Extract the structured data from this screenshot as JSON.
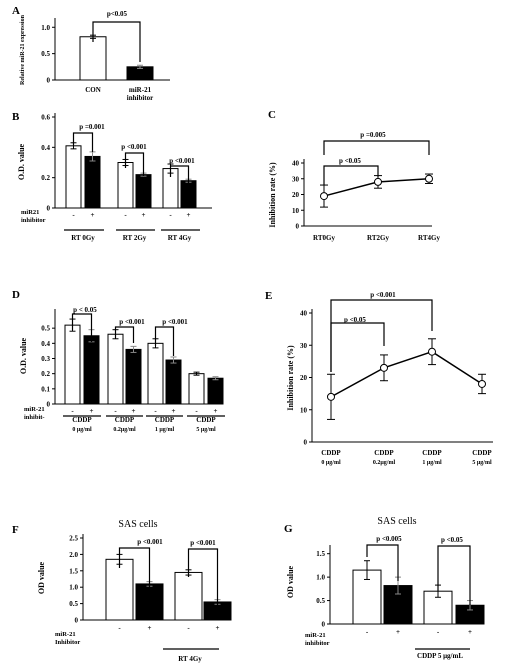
{
  "panels": [
    {
      "id": "A",
      "letter": "A",
      "type": "bar",
      "ylabel": "Relative miR-21 expression",
      "yticks": [
        "0",
        "0.5",
        "1.0"
      ],
      "ylim": [
        0,
        1.1
      ],
      "groups": [
        {
          "label": "",
          "bars": [
            {
              "label": "CON",
              "value": 0.82,
              "err": 0.03,
              "fill": "white"
            },
            {
              "label": "miR-21 inhibitor",
              "value": 0.25,
              "err": 0.03,
              "fill": "black"
            }
          ]
        }
      ],
      "sig": [
        {
          "label": "p<0.05"
        }
      ]
    },
    {
      "id": "B",
      "letter": "B",
      "type": "bar",
      "ylabel": "O.D. value",
      "yticks": [
        "0",
        "0.2",
        "0.4",
        "0.6"
      ],
      "ylim": [
        0,
        0.6
      ],
      "inhibitor_label": [
        "miR21",
        "inhibitor"
      ],
      "signs": [
        "-",
        "+"
      ],
      "groups": [
        {
          "label": "RT 0Gy",
          "bars": [
            {
              "value": 0.41,
              "err": 0.02,
              "fill": "white"
            },
            {
              "value": 0.34,
              "err": 0.03,
              "fill": "black"
            }
          ]
        },
        {
          "label": "RT 2Gy",
          "bars": [
            {
              "value": 0.3,
              "err": 0.02,
              "fill": "white"
            },
            {
              "value": 0.22,
              "err": 0.01,
              "fill": "black"
            }
          ]
        },
        {
          "label": "RT 4Gy",
          "bars": [
            {
              "value": 0.26,
              "err": 0.03,
              "fill": "white"
            },
            {
              "value": 0.18,
              "err": 0.01,
              "fill": "black"
            }
          ]
        }
      ],
      "sig": [
        {
          "label": "p =0.001"
        },
        {
          "label": "p <0.001"
        },
        {
          "label": "p <0.001"
        }
      ]
    },
    {
      "id": "C",
      "letter": "C",
      "type": "line",
      "ylabel": "Inhibition rate (%)",
      "yticks": [
        "0",
        "10",
        "20",
        "30",
        "40"
      ],
      "ylim": [
        0,
        40
      ],
      "categories": [
        "RT0Gy",
        "RT2Gy",
        "RT4Gy"
      ],
      "values": [
        19,
        28,
        30
      ],
      "errs": [
        7,
        4,
        3
      ],
      "sig": [
        {
          "label": "p =0.005"
        },
        {
          "label": "p <0.05"
        }
      ]
    },
    {
      "id": "D",
      "letter": "D",
      "type": "bar",
      "ylabel": "O.D. value",
      "yticks": [
        "0",
        "0.1",
        "0.2",
        "0.3",
        "0.4",
        "0.5"
      ],
      "ylim": [
        0,
        0.6
      ],
      "inhibitor_label": [
        "miR-21",
        "inhibit-"
      ],
      "signs": [
        "-",
        "+"
      ],
      "groups": [
        {
          "label": "CDDP",
          "sublabel": "0 μg/ml",
          "bars": [
            {
              "value": 0.52,
              "err": 0.04,
              "fill": "white"
            },
            {
              "value": 0.45,
              "err": 0.04,
              "fill": "black"
            }
          ]
        },
        {
          "label": "CDDP",
          "sublabel": "0.2μg/ml",
          "bars": [
            {
              "value": 0.46,
              "err": 0.03,
              "fill": "white"
            },
            {
              "value": 0.36,
              "err": 0.02,
              "fill": "black"
            }
          ]
        },
        {
          "label": "CDDP",
          "sublabel": "1 μg/ml",
          "bars": [
            {
              "value": 0.4,
              "err": 0.03,
              "fill": "white"
            },
            {
              "value": 0.29,
              "err": 0.02,
              "fill": "black"
            }
          ]
        },
        {
          "label": "CDDP",
          "sublabel": "5 μg/ml",
          "bars": [
            {
              "value": 0.2,
              "err": 0.01,
              "fill": "white"
            },
            {
              "value": 0.17,
              "err": 0.01,
              "fill": "black"
            }
          ]
        }
      ],
      "sig": [
        {
          "label": "p < 0.05"
        },
        {
          "label": "p <0.001"
        },
        {
          "label": "p <0.001"
        }
      ]
    },
    {
      "id": "E",
      "letter": "E",
      "type": "line",
      "ylabel": "Inhibition rate (%)",
      "yticks": [
        "0",
        "10",
        "20",
        "30",
        "40"
      ],
      "ylim": [
        0,
        40
      ],
      "categories": [
        [
          "CDDP",
          "0 μg/ml"
        ],
        [
          "CDDP",
          "0.2μg/ml"
        ],
        [
          "CDDP",
          "1 μg/ml"
        ],
        [
          "CDDP",
          "5 μg/ml"
        ]
      ],
      "values": [
        14,
        23,
        28,
        18
      ],
      "errs": [
        7,
        4,
        4,
        3
      ],
      "sig": [
        {
          "label": "p <0.001"
        },
        {
          "label": "p <0.05"
        }
      ]
    },
    {
      "id": "F",
      "letter": "F",
      "type": "bar",
      "title": "SAS   cells",
      "ylabel": "OD value",
      "yticks": [
        "0",
        "0.5",
        "1.0",
        "1.5",
        "2.0",
        "2.5"
      ],
      "ylim": [
        0,
        2.5
      ],
      "inhibitor_label": [
        "miR-21",
        "Inhibitor"
      ],
      "signs": [
        "-",
        "+",
        "-",
        "+"
      ],
      "groups": [
        {
          "label": "",
          "bars": [
            {
              "value": 1.85,
              "err": 0.15,
              "fill": "white"
            },
            {
              "value": 1.1,
              "err": 0.07,
              "fill": "black"
            }
          ]
        },
        {
          "label": "RT 4Gy",
          "bars": [
            {
              "value": 1.45,
              "err": 0.08,
              "fill": "white"
            },
            {
              "value": 0.55,
              "err": 0.07,
              "fill": "black"
            }
          ]
        }
      ],
      "sig": [
        {
          "label": "p <0.001"
        },
        {
          "label": "p <0.001"
        }
      ]
    },
    {
      "id": "G",
      "letter": "G",
      "type": "bar",
      "title": "SAS   cells",
      "ylabel": "OD value",
      "yticks": [
        "0",
        "0.5",
        "1.0",
        "1.5"
      ],
      "ylim": [
        0,
        1.6
      ],
      "inhibitor_label": [
        "miR-21",
        "inhibitor"
      ],
      "signs": [
        "-",
        "+",
        "-",
        "+"
      ],
      "groups": [
        {
          "label": "",
          "bars": [
            {
              "value": 1.15,
              "err": 0.2,
              "fill": "white"
            },
            {
              "value": 0.82,
              "err": 0.18,
              "fill": "black"
            }
          ]
        },
        {
          "label": "CDDP 5 μg/mL",
          "bars": [
            {
              "value": 0.7,
              "err": 0.13,
              "fill": "white"
            },
            {
              "value": 0.4,
              "err": 0.1,
              "fill": "black"
            }
          ]
        }
      ],
      "sig": [
        {
          "label": "p <0.005"
        },
        {
          "label": "p <0.05"
        }
      ]
    }
  ]
}
